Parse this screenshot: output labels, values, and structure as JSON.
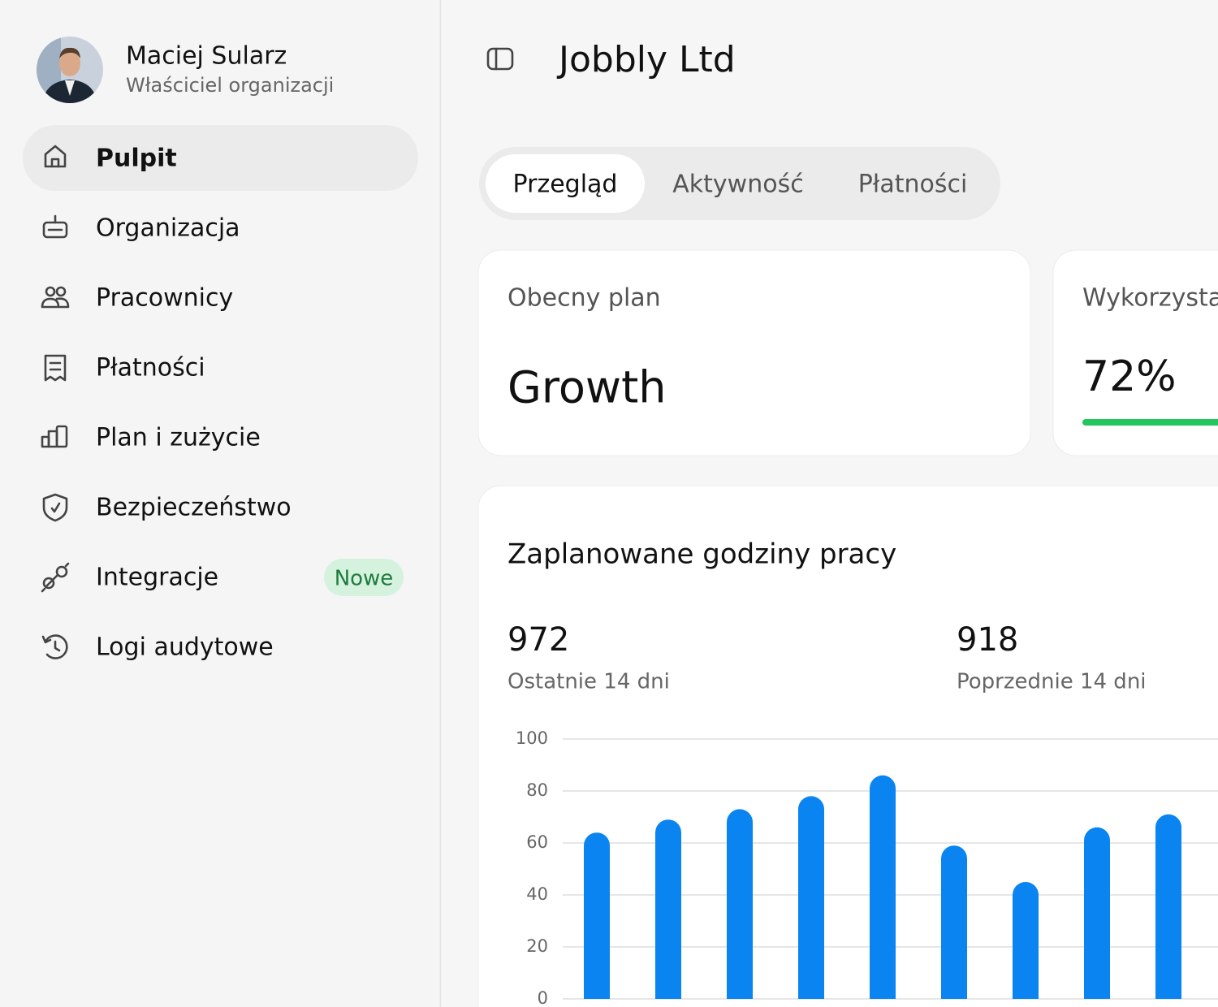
{
  "user": {
    "name": "Maciej Sularz",
    "role": "Właściciel organizacji"
  },
  "nav": [
    {
      "label": "Pulpit",
      "active": true
    },
    {
      "label": "Organizacja"
    },
    {
      "label": "Pracownicy"
    },
    {
      "label": "Płatności"
    },
    {
      "label": "Plan i zużycie"
    },
    {
      "label": "Bezpieczeństwo"
    },
    {
      "label": "Integracje",
      "badge": "Nowe"
    },
    {
      "label": "Logi audytowe"
    }
  ],
  "header": {
    "title": "Jobbly Ltd"
  },
  "tabs": [
    "Przegląd",
    "Aktywność",
    "Płatności"
  ],
  "plan_card": {
    "label": "Obecny plan",
    "value": "Growth"
  },
  "usage_card": {
    "label": "Wykorzysta",
    "value": 72,
    "value_label": "72%"
  },
  "hours_card": {
    "title": "Zaplanowane godziny pracy",
    "current": {
      "value": 972,
      "label": "Ostatnie 14 dni"
    },
    "previous": {
      "value": 918,
      "label": "Poprzednie 14 dni"
    }
  },
  "chart_data": {
    "type": "bar",
    "values": [
      64,
      69,
      73,
      78,
      86,
      59,
      45,
      66,
      71
    ],
    "color": "#0a84f0",
    "ylim": [
      0,
      100
    ],
    "yticks": [
      0,
      20,
      40,
      60,
      80,
      100
    ],
    "grid": true
  }
}
